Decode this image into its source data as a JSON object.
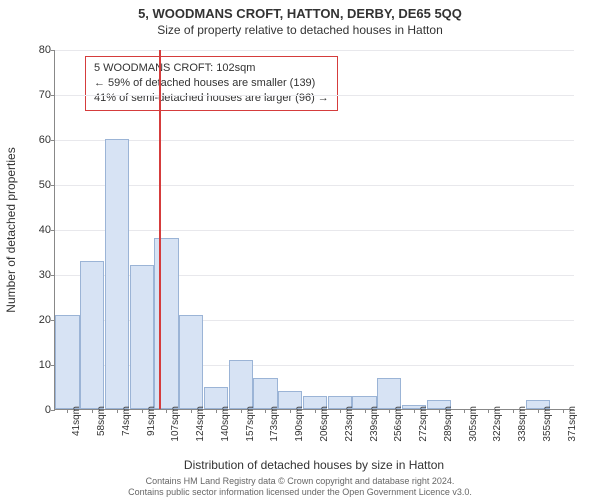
{
  "titles": {
    "main": "5, WOODMANS CROFT, HATTON, DERBY, DE65 5QQ",
    "sub": "Size of property relative to detached houses in Hatton"
  },
  "axes": {
    "ylabel": "Number of detached properties",
    "xlabel": "Distribution of detached houses by size in Hatton",
    "ylim": [
      0,
      80
    ],
    "ytick_step": 10
  },
  "footer": {
    "line1": "Contains HM Land Registry data © Crown copyright and database right 2024.",
    "line2": "Contains public sector information licensed under the Open Government Licence v3.0."
  },
  "annotation": {
    "line1": "5 WOODMANS CROFT: 102sqm",
    "line2": "← 59% of detached houses are smaller (139)",
    "line3": "41% of semi-detached houses are larger (96) →"
  },
  "chart": {
    "type": "histogram",
    "bar_fill": "#d7e3f4",
    "bar_stroke": "#9bb4d6",
    "grid_color": "#e8e8ec",
    "refline_color": "#d53c3c",
    "refline_x_index": 3.7,
    "categories": [
      "41sqm",
      "58sqm",
      "74sqm",
      "91sqm",
      "107sqm",
      "124sqm",
      "140sqm",
      "157sqm",
      "173sqm",
      "190sqm",
      "206sqm",
      "223sqm",
      "239sqm",
      "256sqm",
      "272sqm",
      "289sqm",
      "305sqm",
      "322sqm",
      "338sqm",
      "355sqm",
      "371sqm"
    ],
    "values": [
      21,
      33,
      60,
      32,
      38,
      21,
      5,
      11,
      7,
      4,
      3,
      3,
      3,
      7,
      1,
      2,
      0,
      0,
      0,
      2,
      0
    ]
  }
}
